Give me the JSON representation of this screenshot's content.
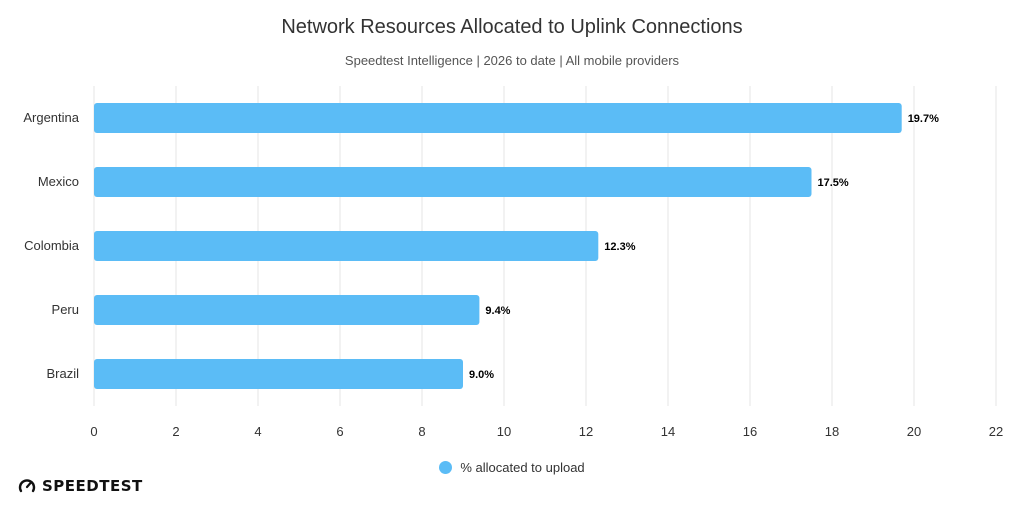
{
  "chart_data": {
    "type": "bar",
    "orientation": "horizontal",
    "title": "Network Resources Allocated to Uplink Connections",
    "subtitle": "Speedtest Intelligence | 2026 to date | All mobile providers",
    "categories": [
      "Argentina",
      "Mexico",
      "Colombia",
      "Peru",
      "Brazil"
    ],
    "series": [
      {
        "name": "% allocated to upload",
        "values": [
          19.7,
          17.5,
          12.3,
          9.4,
          9.0
        ],
        "data_labels": [
          "19.7%",
          "17.5%",
          "12.3%",
          "9.4%",
          "9.0%"
        ],
        "color": "#5bbcf6"
      }
    ],
    "xlim": [
      0,
      22
    ],
    "x_ticks": [
      0,
      2,
      4,
      6,
      8,
      10,
      12,
      14,
      16,
      18,
      20,
      22
    ],
    "x_tick_labels": [
      "0",
      "2",
      "4",
      "6",
      "8",
      "10",
      "12",
      "14",
      "16",
      "18",
      "20",
      "22"
    ],
    "grid": true,
    "grid_color": "#e6e6e6",
    "legend_position": "bottom-center"
  },
  "brand": {
    "name": "SPEEDTEST",
    "icon": "speedtest-gauge-icon"
  }
}
